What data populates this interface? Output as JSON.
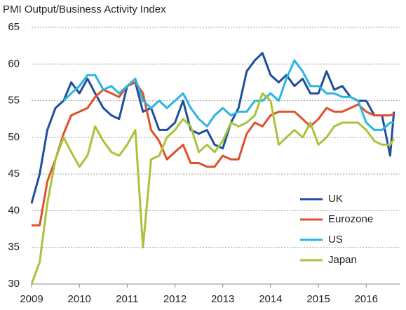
{
  "chart_data": {
    "type": "line",
    "title": "PMI Output/Business Activity Index",
    "x": [
      2009,
      2009.17,
      2009.33,
      2009.5,
      2009.67,
      2009.83,
      2010,
      2010.17,
      2010.33,
      2010.5,
      2010.67,
      2010.83,
      2011,
      2011.17,
      2011.33,
      2011.5,
      2011.67,
      2011.83,
      2012,
      2012.17,
      2012.33,
      2012.5,
      2012.67,
      2012.83,
      2013,
      2013.17,
      2013.33,
      2013.5,
      2013.67,
      2013.83,
      2014,
      2014.17,
      2014.33,
      2014.5,
      2014.67,
      2014.83,
      2015,
      2015.17,
      2015.33,
      2015.5,
      2015.67,
      2015.83,
      2016,
      2016.17,
      2016.33,
      2016.5,
      2016.58
    ],
    "series": [
      {
        "name": "UK",
        "color": "#1f4e9c",
        "values": [
          41,
          45,
          51,
          54,
          55,
          57.5,
          56,
          58,
          56,
          54,
          53,
          52.5,
          57,
          57.5,
          53.5,
          54,
          51,
          51,
          52,
          55,
          51,
          50.5,
          51,
          49,
          48.5,
          52,
          54,
          59,
          60.5,
          61.5,
          58.5,
          57.5,
          58.5,
          57,
          58,
          56,
          56,
          59,
          56.5,
          57,
          55.5,
          55,
          55,
          53,
          53,
          47.5,
          53.5
        ]
      },
      {
        "name": "Eurozone",
        "color": "#e0502a",
        "values": [
          38,
          38,
          44,
          47,
          50.5,
          53,
          53.5,
          54,
          55.5,
          56.5,
          56,
          55.5,
          57,
          57.5,
          56,
          51,
          49.5,
          47,
          48,
          49,
          46.5,
          46.5,
          46,
          46,
          47.5,
          47,
          47,
          50.5,
          52,
          51.5,
          53,
          53.5,
          53.5,
          53.5,
          52.5,
          51.5,
          52.5,
          54,
          53.5,
          53.5,
          54,
          54.5,
          53.5,
          53,
          53,
          53,
          53.2
        ]
      },
      {
        "name": "US",
        "color": "#2bb5e0",
        "values": [
          null,
          null,
          null,
          null,
          55,
          56,
          57,
          58.5,
          58.5,
          56.5,
          57,
          56,
          57,
          58,
          55,
          54,
          55,
          54,
          55,
          56,
          54,
          52.5,
          51.5,
          53,
          54,
          53,
          53.5,
          53.5,
          55,
          55,
          56,
          55,
          58,
          60.5,
          59,
          57,
          57,
          56,
          56,
          55.5,
          55.5,
          55,
          52,
          51,
          51,
          52,
          52
        ]
      },
      {
        "name": "Japan",
        "color": "#a8c43a",
        "values": [
          30,
          33,
          41,
          47,
          50,
          48,
          46,
          47.5,
          51.5,
          49.5,
          48,
          47.5,
          49,
          51,
          35,
          47,
          47.5,
          50,
          51,
          52.5,
          51.5,
          48,
          49,
          48,
          49.5,
          52,
          51.5,
          52,
          53,
          56,
          55,
          49,
          50,
          51,
          50,
          52,
          49,
          50,
          51.5,
          52,
          52,
          52,
          51,
          49.5,
          49,
          49,
          49.8
        ]
      }
    ],
    "xlim": [
      2009,
      2016.7
    ],
    "xticks": [
      2009,
      2010,
      2011,
      2012,
      2013,
      2014,
      2015,
      2016
    ],
    "ylim": [
      30,
      65
    ],
    "yticks": [
      30,
      35,
      40,
      45,
      50,
      55,
      60,
      65
    ],
    "grid": true,
    "legend": "lower right"
  }
}
